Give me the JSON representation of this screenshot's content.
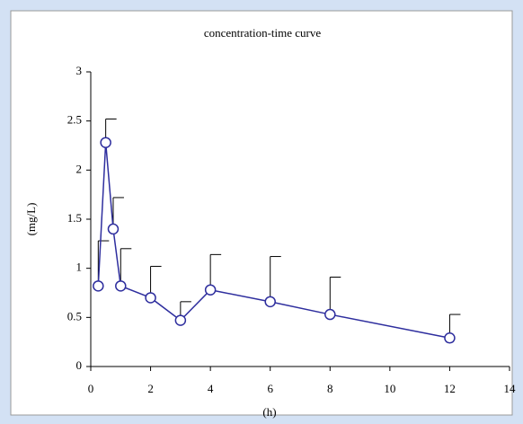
{
  "chart_data": {
    "type": "line",
    "title": "concentration-time curve",
    "x_label": "(h)",
    "y_label": "(mg/L)",
    "x": [
      0.25,
      0.5,
      0.75,
      1,
      2,
      3,
      4,
      6,
      8,
      12
    ],
    "series": [
      {
        "color": "#2e2e9e",
        "values": [
          0.82,
          2.28,
          1.4,
          0.82,
          0.7,
          0.47,
          0.78,
          0.66,
          0.53,
          0.29
        ],
        "errors": [
          0.46,
          0.24,
          0.32,
          0.38,
          0.32,
          0.19,
          0.36,
          0.46,
          0.38,
          0.24
        ]
      }
    ],
    "error_color": "#000000",
    "xlim": [
      0,
      14
    ],
    "xticks": [
      0,
      2,
      4,
      6,
      8,
      10,
      12,
      14
    ],
    "ylim": [
      0,
      3
    ],
    "yticks": [
      0,
      0.5,
      1,
      1.5,
      2,
      2.5,
      3
    ]
  }
}
